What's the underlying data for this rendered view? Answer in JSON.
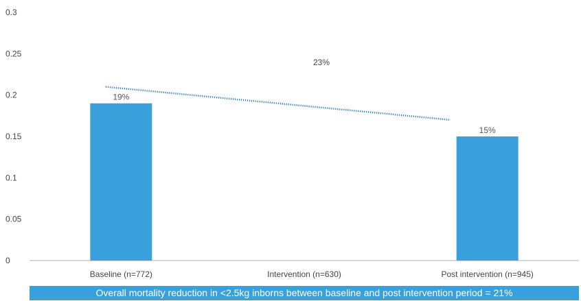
{
  "colors": {
    "bar": "#3aa0dc",
    "trendline": "#2b7bbd",
    "axis": "#b0b0b0",
    "banner": "#3aa0dc",
    "banner_text": "#ffffff"
  },
  "chart_data": {
    "type": "bar",
    "categories": [
      "Baseline (n=772)",
      "Intervention (n=630)",
      "Post intervention (n=945)"
    ],
    "values": [
      0.19,
      null,
      0.15
    ],
    "data_labels": [
      "19%",
      "",
      "15%"
    ],
    "ylim": [
      0,
      0.3
    ],
    "yticks": [
      "0",
      "0.05",
      "0.1",
      "0.15",
      "0.2",
      "0.25",
      "0.3"
    ],
    "trendline": {
      "style": "dotted",
      "from_value": 0.21,
      "to_value": 0.17
    },
    "annotation": "23%",
    "grid": false,
    "legend": "none"
  },
  "footer": {
    "banner_text": "Overall mortality reduction in <2.5kg inborns between baseline and post intervention period = 21%"
  }
}
